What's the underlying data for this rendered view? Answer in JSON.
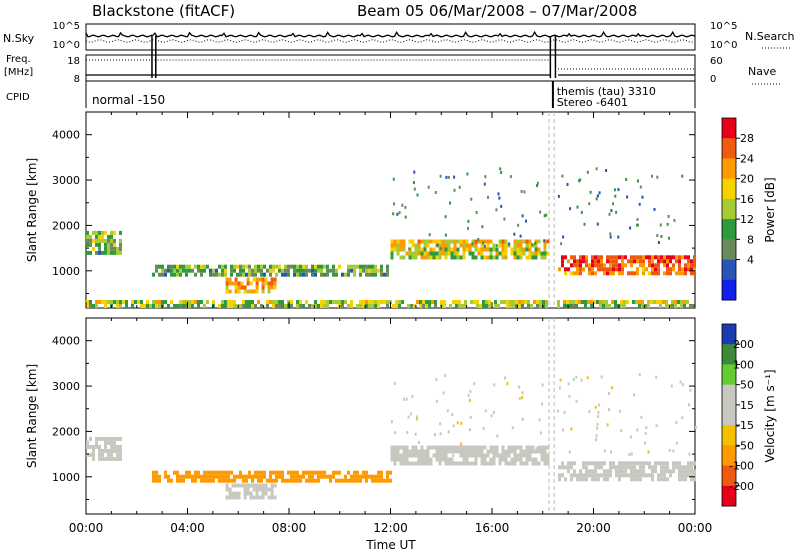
{
  "header": {
    "station": "Blackstone (fitACF)",
    "beam_date": "Beam 05  06/Mar/2008 – 07/Mar/2008"
  },
  "summary": {
    "nsky_label": "N.Sky",
    "nsearch_label": "N.Search",
    "freq_label_line1": "Freq.",
    "freq_label_line2": "[MHz]",
    "nave_label": "Nave",
    "cpid_label": "CPID",
    "left_ticks_top": [
      "10^5",
      "10^0"
    ],
    "right_ticks_top": [
      "10^5",
      "10^0"
    ],
    "left_ticks_mid": [
      "18",
      "8"
    ],
    "right_ticks_mid": [
      "60",
      "0"
    ],
    "cpid_entries": [
      {
        "text": "normal -150",
        "start_hour": 0
      },
      {
        "text": "themis (tau) 3310",
        "start_hour": 18.5
      },
      {
        "text": "Stereo -6401",
        "start_hour": 18.5
      }
    ]
  },
  "chart_data": [
    {
      "type": "heatmap",
      "name": "power",
      "ylabel": "Slant Range [km]",
      "xlabel": "Time UT",
      "xlim": [
        0,
        24
      ],
      "ylim": [
        180,
        4500
      ],
      "yticks": [
        1000,
        2000,
        3000,
        4000
      ],
      "xtick_labels": [
        "00:00",
        "04:00",
        "08:00",
        "12:00",
        "16:00",
        "20:00",
        "00:00"
      ],
      "colorbar": {
        "label": "Power [dB]",
        "ticks": [
          "28",
          "24",
          "20",
          "16",
          "12",
          "8",
          "4"
        ],
        "colors": [
          "#e8001a",
          "#f05a10",
          "#ff9900",
          "#f5d200",
          "#a5cc33",
          "#2f9a3b",
          "#6b8a5a",
          "#2a55b8",
          "#1020e8"
        ]
      },
      "features": [
        {
          "t0": 0.0,
          "t1": 1.4,
          "r0": 1350,
          "r1": 1800,
          "value": 10,
          "note": "early echo band"
        },
        {
          "t0": 2.6,
          "t1": 12.0,
          "r0": 870,
          "r1": 1080,
          "value": 9
        },
        {
          "t0": 5.5,
          "t1": 7.5,
          "r0": 500,
          "r1": 800,
          "value": 18
        },
        {
          "t0": 12.0,
          "t1": 18.2,
          "r0": 1250,
          "r1": 1650,
          "value": 14
        },
        {
          "t0": 18.6,
          "t1": 24.0,
          "r0": 900,
          "r1": 1300,
          "value": 22
        },
        {
          "t0": 0.0,
          "t1": 24.0,
          "r0": 180,
          "r1": 320,
          "value": 12,
          "note": "near-range ground scatter"
        }
      ]
    },
    {
      "type": "heatmap",
      "name": "velocity",
      "ylabel": "Slant Range [km]",
      "xlabel": "Time UT",
      "xlim": [
        0,
        24
      ],
      "ylim": [
        180,
        4500
      ],
      "yticks": [
        1000,
        2000,
        3000,
        4000
      ],
      "xtick_labels": [
        "00:00",
        "04:00",
        "08:00",
        "12:00",
        "16:00",
        "20:00",
        "00:00"
      ],
      "colorbar": {
        "label": "Velocity [m s⁻¹]",
        "ticks": [
          "200",
          "100",
          "50",
          "15",
          "-15",
          "-50",
          "-100",
          "-200"
        ],
        "colors": [
          "#1a3cb0",
          "#3a8a3a",
          "#66cc33",
          "#c8c8c0",
          "#c8c8c0",
          "#f5c000",
          "#ff9900",
          "#f05a10",
          "#e8001a"
        ]
      },
      "features": [
        {
          "t0": 0.0,
          "t1": 1.4,
          "r0": 1350,
          "r1": 1800,
          "value": 0
        },
        {
          "t0": 2.6,
          "t1": 12.0,
          "r0": 870,
          "r1": 1080,
          "value": -40
        },
        {
          "t0": 5.5,
          "t1": 7.5,
          "r0": 500,
          "r1": 800,
          "value": 0
        },
        {
          "t0": 12.0,
          "t1": 18.2,
          "r0": 1250,
          "r1": 1650,
          "value": 0
        },
        {
          "t0": 18.6,
          "t1": 24.0,
          "r0": 900,
          "r1": 1300,
          "value": 0
        }
      ]
    }
  ]
}
